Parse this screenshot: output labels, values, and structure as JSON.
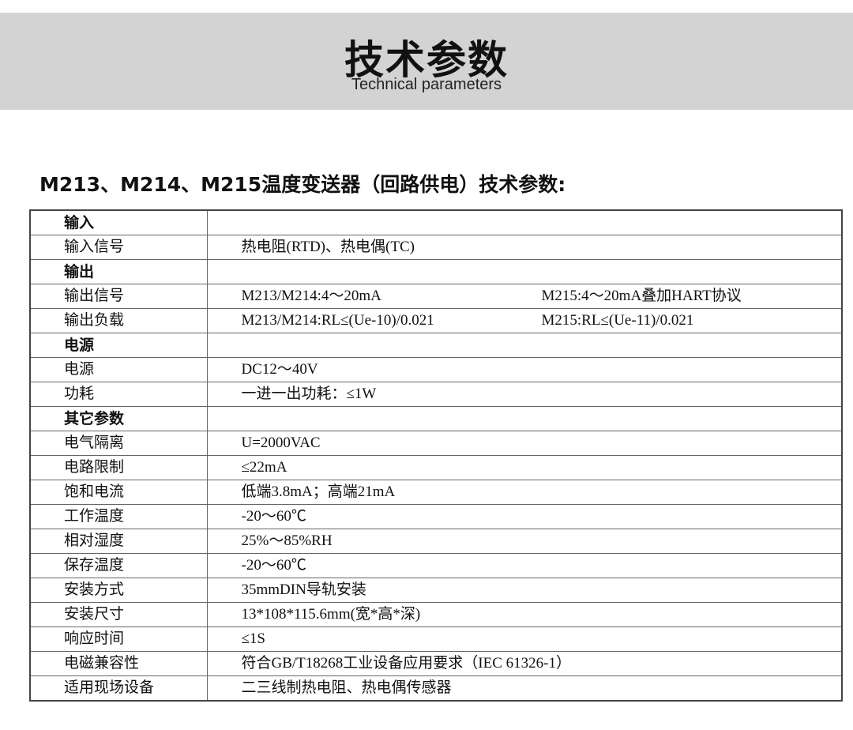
{
  "banner": {
    "title": "技术参数",
    "subtitle": "Technical parameters"
  },
  "heading": "M213、M214、M215温度变送器（回路供电）技术参数:",
  "rows": [
    {
      "k": "输入",
      "v": "",
      "section": true
    },
    {
      "k": "输入信号",
      "v": "热电阻(RTD)、热电偶(TC)"
    },
    {
      "k": "输出",
      "v": "",
      "section": true
    },
    {
      "k": "输出信号",
      "v": "M213/M214:4～20mA",
      "v2": "M215:4～20mA叠加HART协议"
    },
    {
      "k": "输出负载",
      "v": "M213/M214:RL≤(Ue-10)/0.021",
      "v2": "M215:RL≤(Ue-11)/0.021"
    },
    {
      "k": "电源",
      "v": "",
      "section": true
    },
    {
      "k": "电源",
      "v": "DC12～40V"
    },
    {
      "k": "功耗",
      "v": "一进一出功耗：≤1W"
    },
    {
      "k": "其它参数",
      "v": "",
      "section": true
    },
    {
      "k": "电气隔离",
      "v": "U=2000VAC"
    },
    {
      "k": "电路限制",
      "v": "≤22mA"
    },
    {
      "k": "饱和电流",
      "v": "低端3.8mA；高端21mA"
    },
    {
      "k": "工作温度",
      "v": "-20～60℃"
    },
    {
      "k": "相对湿度",
      "v": "25%～85%RH"
    },
    {
      "k": "保存温度",
      "v": "-20～60℃"
    },
    {
      "k": "安装方式",
      "v": "35mmDIN导轨安装"
    },
    {
      "k": "安装尺寸",
      "v": "13*108*115.6mm(宽*高*深)"
    },
    {
      "k": "响应时间",
      "v": "≤1S"
    },
    {
      "k": "电磁兼容性",
      "v": "符合GB/T18268工业设备应用要求（IEC 61326-1）"
    },
    {
      "k": "适用现场设备",
      "v": "二三线制热电阻、热电偶传感器"
    }
  ]
}
